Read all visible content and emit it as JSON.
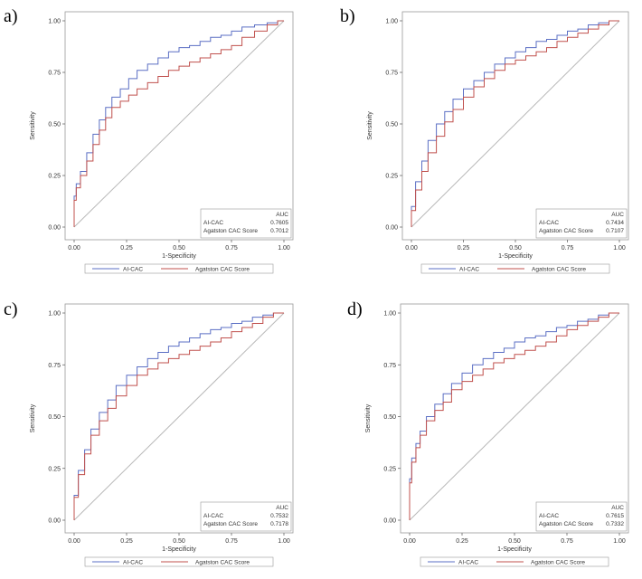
{
  "colors": {
    "ai_cac": "#5b6fc4",
    "agatston": "#c0504d",
    "diagonal": "#b8b8b8",
    "frame": "#9a9a9a"
  },
  "auc_header": "AUC",
  "chart_data": [
    {
      "panel_label": "a)",
      "type": "line",
      "xlabel": "1-Specificity",
      "ylabel": "Sensitivity",
      "xlim": [
        0,
        1
      ],
      "ylim": [
        0,
        1
      ],
      "x_ticks": [
        "0.00",
        "0.25",
        "0.50",
        "0.75",
        "1.00"
      ],
      "y_ticks": [
        "0.00",
        "0.25",
        "0.50",
        "0.75",
        "1.00"
      ],
      "grid": false,
      "series": [
        {
          "name": "AI-CAC",
          "auc": "0.7605",
          "x": [
            0,
            0.01,
            0.03,
            0.06,
            0.09,
            0.12,
            0.15,
            0.18,
            0.22,
            0.26,
            0.3,
            0.35,
            0.4,
            0.45,
            0.5,
            0.55,
            0.6,
            0.65,
            0.7,
            0.75,
            0.8,
            0.86,
            0.92,
            0.97,
            1
          ],
          "y": [
            0,
            0.15,
            0.21,
            0.27,
            0.36,
            0.45,
            0.52,
            0.58,
            0.63,
            0.67,
            0.72,
            0.76,
            0.79,
            0.82,
            0.85,
            0.87,
            0.88,
            0.9,
            0.92,
            0.93,
            0.95,
            0.97,
            0.98,
            0.99,
            1
          ]
        },
        {
          "name": "Agatston CAC Score",
          "auc": "0.7012",
          "x": [
            0,
            0.01,
            0.03,
            0.06,
            0.09,
            0.12,
            0.15,
            0.18,
            0.22,
            0.26,
            0.3,
            0.35,
            0.4,
            0.45,
            0.5,
            0.55,
            0.6,
            0.65,
            0.7,
            0.75,
            0.8,
            0.86,
            0.92,
            0.97,
            1
          ],
          "y": [
            0,
            0.13,
            0.19,
            0.25,
            0.32,
            0.4,
            0.47,
            0.53,
            0.58,
            0.61,
            0.64,
            0.67,
            0.7,
            0.73,
            0.76,
            0.78,
            0.8,
            0.82,
            0.84,
            0.86,
            0.88,
            0.92,
            0.95,
            0.98,
            1
          ]
        }
      ],
      "legend_placement": "bottom"
    },
    {
      "panel_label": "b)",
      "type": "line",
      "xlabel": "1-Specificity",
      "ylabel": "Sensitivity",
      "xlim": [
        0,
        1
      ],
      "ylim": [
        0,
        1
      ],
      "x_ticks": [
        "0.00",
        "0.25",
        "0.50",
        "0.75",
        "1.00"
      ],
      "y_ticks": [
        "0.00",
        "0.25",
        "0.50",
        "0.75",
        "1.00"
      ],
      "grid": false,
      "series": [
        {
          "name": "AI-CAC",
          "auc": "0.7434",
          "x": [
            0,
            0.02,
            0.05,
            0.08,
            0.12,
            0.16,
            0.2,
            0.25,
            0.3,
            0.35,
            0.4,
            0.45,
            0.5,
            0.55,
            0.6,
            0.65,
            0.7,
            0.75,
            0.8,
            0.85,
            0.9,
            0.95,
            1
          ],
          "y": [
            0,
            0.1,
            0.22,
            0.32,
            0.42,
            0.5,
            0.56,
            0.62,
            0.67,
            0.71,
            0.75,
            0.79,
            0.82,
            0.85,
            0.87,
            0.9,
            0.91,
            0.93,
            0.95,
            0.96,
            0.98,
            0.99,
            1
          ]
        },
        {
          "name": "Agatston CAC Score",
          "auc": "0.7107",
          "x": [
            0,
            0.02,
            0.05,
            0.08,
            0.12,
            0.16,
            0.2,
            0.25,
            0.3,
            0.35,
            0.4,
            0.45,
            0.5,
            0.55,
            0.6,
            0.65,
            0.7,
            0.75,
            0.8,
            0.85,
            0.9,
            0.95,
            1
          ],
          "y": [
            0,
            0.08,
            0.18,
            0.27,
            0.36,
            0.44,
            0.51,
            0.57,
            0.63,
            0.68,
            0.72,
            0.76,
            0.79,
            0.81,
            0.83,
            0.85,
            0.87,
            0.9,
            0.92,
            0.94,
            0.96,
            0.98,
            1
          ]
        }
      ],
      "legend_placement": "bottom"
    },
    {
      "panel_label": "c)",
      "type": "line",
      "xlabel": "1-Specificity",
      "ylabel": "Sensitivity",
      "xlim": [
        0,
        1
      ],
      "ylim": [
        0,
        1
      ],
      "x_ticks": [
        "0.00",
        "0.25",
        "0.50",
        "0.75",
        "1.00"
      ],
      "y_ticks": [
        "0.00",
        "0.25",
        "0.50",
        "0.75",
        "1.00"
      ],
      "grid": false,
      "series": [
        {
          "name": "AI-CAC",
          "auc": "0.7532",
          "x": [
            0,
            0.02,
            0.05,
            0.08,
            0.12,
            0.16,
            0.2,
            0.25,
            0.3,
            0.35,
            0.4,
            0.45,
            0.5,
            0.55,
            0.6,
            0.65,
            0.7,
            0.75,
            0.8,
            0.85,
            0.9,
            0.95,
            1
          ],
          "y": [
            0,
            0.12,
            0.24,
            0.34,
            0.44,
            0.52,
            0.58,
            0.65,
            0.7,
            0.74,
            0.78,
            0.81,
            0.84,
            0.86,
            0.88,
            0.9,
            0.92,
            0.93,
            0.95,
            0.96,
            0.98,
            0.99,
            1
          ]
        },
        {
          "name": "Agatston CAC Score",
          "auc": "0.7178",
          "x": [
            0,
            0.02,
            0.05,
            0.08,
            0.12,
            0.16,
            0.2,
            0.25,
            0.3,
            0.35,
            0.4,
            0.45,
            0.5,
            0.55,
            0.6,
            0.65,
            0.7,
            0.75,
            0.8,
            0.85,
            0.9,
            0.95,
            1
          ],
          "y": [
            0,
            0.11,
            0.22,
            0.32,
            0.41,
            0.48,
            0.54,
            0.6,
            0.65,
            0.7,
            0.73,
            0.76,
            0.78,
            0.8,
            0.82,
            0.84,
            0.86,
            0.88,
            0.91,
            0.93,
            0.95,
            0.98,
            1
          ]
        }
      ],
      "legend_placement": "bottom"
    },
    {
      "panel_label": "d)",
      "type": "line",
      "xlabel": "1-Specificity",
      "ylabel": "Sensitivity",
      "xlim": [
        0,
        1
      ],
      "ylim": [
        0,
        1
      ],
      "x_ticks": [
        "0.00",
        "0.25",
        "0.50",
        "0.75",
        "1.00"
      ],
      "y_ticks": [
        "0.00",
        "0.25",
        "0.50",
        "0.75",
        "1.00"
      ],
      "grid": false,
      "series": [
        {
          "name": "AI-CAC",
          "auc": "0.7615",
          "x": [
            0,
            0.01,
            0.03,
            0.05,
            0.08,
            0.12,
            0.16,
            0.2,
            0.25,
            0.3,
            0.35,
            0.4,
            0.45,
            0.5,
            0.55,
            0.6,
            0.65,
            0.7,
            0.75,
            0.8,
            0.85,
            0.9,
            0.95,
            1
          ],
          "y": [
            0,
            0.2,
            0.3,
            0.37,
            0.43,
            0.5,
            0.56,
            0.61,
            0.66,
            0.71,
            0.75,
            0.78,
            0.81,
            0.83,
            0.86,
            0.88,
            0.89,
            0.91,
            0.93,
            0.94,
            0.96,
            0.97,
            0.99,
            1
          ]
        },
        {
          "name": "Agatston CAC Score",
          "auc": "0.7332",
          "x": [
            0,
            0.01,
            0.03,
            0.05,
            0.08,
            0.12,
            0.16,
            0.2,
            0.25,
            0.3,
            0.35,
            0.4,
            0.45,
            0.5,
            0.55,
            0.6,
            0.65,
            0.7,
            0.75,
            0.8,
            0.85,
            0.9,
            0.95,
            1
          ],
          "y": [
            0,
            0.18,
            0.28,
            0.35,
            0.41,
            0.48,
            0.53,
            0.57,
            0.63,
            0.67,
            0.7,
            0.73,
            0.76,
            0.78,
            0.8,
            0.82,
            0.84,
            0.86,
            0.89,
            0.92,
            0.94,
            0.96,
            0.98,
            1
          ]
        }
      ],
      "legend_placement": "bottom"
    }
  ]
}
